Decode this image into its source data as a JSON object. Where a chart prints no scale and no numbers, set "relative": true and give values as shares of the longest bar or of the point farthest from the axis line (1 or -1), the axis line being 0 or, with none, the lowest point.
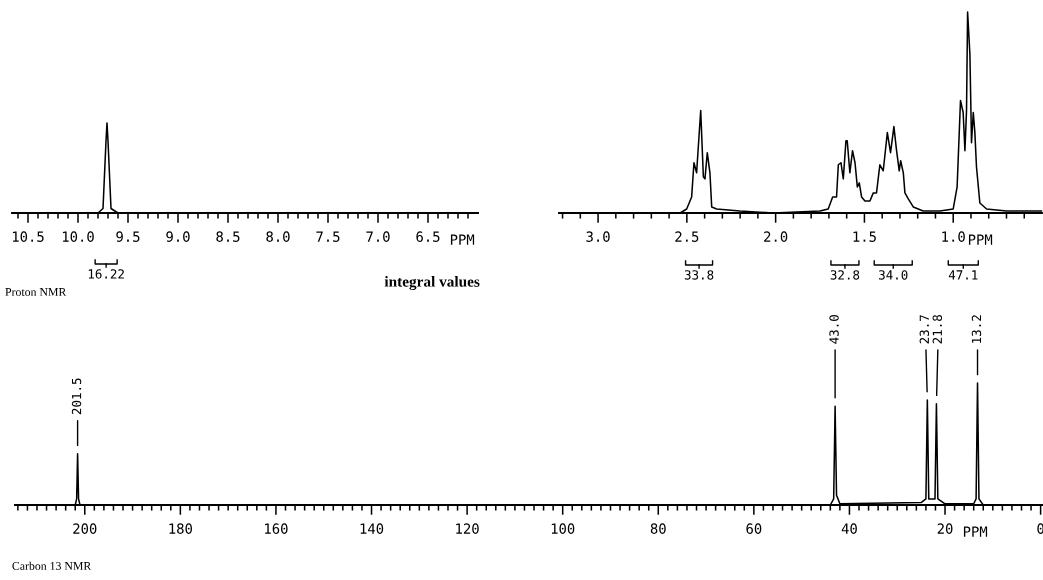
{
  "chart_data": [
    {
      "type": "line",
      "relative": true,
      "xlabel": "PPM",
      "xlim": [
        10.66,
        6.0
      ],
      "xticks": [
        {
          "value": 10.6,
          "label": null
        },
        10.5,
        {
          "value": 10.4,
          "label": null
        },
        {
          "value": 10.3,
          "label": null
        },
        {
          "value": 10.2,
          "label": null
        },
        {
          "value": 10.1,
          "label": null
        },
        {
          "value": 10.0,
          "label": "10.0"
        },
        {
          "value": 9.9,
          "label": null
        },
        {
          "value": 9.8,
          "label": null
        },
        {
          "value": 9.7,
          "label": null
        },
        {
          "value": 9.6,
          "label": null
        },
        9.5,
        {
          "value": 9.4,
          "label": null
        },
        {
          "value": 9.3,
          "label": null
        },
        {
          "value": 9.2,
          "label": null
        },
        {
          "value": 9.1,
          "label": null
        },
        {
          "value": 9.0,
          "label": "9.0"
        },
        {
          "value": 8.9,
          "label": null
        },
        {
          "value": 8.8,
          "label": null
        },
        {
          "value": 8.7,
          "label": null
        },
        {
          "value": 8.6,
          "label": null
        },
        8.5,
        {
          "value": 8.4,
          "label": null
        },
        {
          "value": 8.3,
          "label": null
        },
        {
          "value": 8.2,
          "label": null
        },
        {
          "value": 8.1,
          "label": null
        },
        {
          "value": 8.0,
          "label": "8.0"
        },
        {
          "value": 7.9,
          "label": null
        },
        {
          "value": 7.8,
          "label": null
        },
        {
          "value": 7.7,
          "label": null
        },
        {
          "value": 7.6,
          "label": null
        },
        7.5,
        {
          "value": 7.4,
          "label": null
        },
        {
          "value": 7.3,
          "label": null
        },
        {
          "value": 7.2,
          "label": null
        },
        {
          "value": 7.1,
          "label": null
        },
        {
          "value": 7.0,
          "label": "7.0"
        },
        {
          "value": 6.9,
          "label": null
        },
        {
          "value": 6.8,
          "label": null
        },
        {
          "value": 6.7,
          "label": null
        },
        {
          "value": 6.6,
          "label": null
        },
        6.5,
        {
          "value": 6.4,
          "label": null
        },
        {
          "value": 6.3,
          "label": null
        },
        {
          "value": 6.2,
          "label": null
        },
        {
          "value": 6.1,
          "label": null
        }
      ],
      "series": [
        {
          "color": "#000000",
          "x": [
            10.66,
            9.8,
            9.75,
            9.72,
            9.71,
            9.7,
            9.67,
            9.6,
            6.0
          ],
          "values": [
            0,
            0,
            0.05,
            0.8,
            1,
            0.8,
            0.05,
            0,
            0
          ]
        }
      ],
      "annotations": [
        "Proton NMR",
        "integral values",
        "16.22"
      ]
    },
    {
      "type": "line",
      "relative": true,
      "xlabel": "PPM",
      "xlim": [
        3.22,
        0.5
      ],
      "xticks": [
        {
          "value": 3.2,
          "label": null
        },
        {
          "value": 3.1,
          "label": null
        },
        {
          "value": 3.0,
          "label": "3.0"
        },
        {
          "value": 2.9,
          "label": null
        },
        {
          "value": 2.8,
          "label": null
        },
        {
          "value": 2.7,
          "label": null
        },
        {
          "value": 2.6,
          "label": null
        },
        2.5,
        {
          "value": 2.4,
          "label": null
        },
        {
          "value": 2.3,
          "label": null
        },
        {
          "value": 2.2,
          "label": null
        },
        {
          "value": 2.1,
          "label": null
        },
        {
          "value": 2.0,
          "label": "2.0"
        },
        {
          "value": 1.9,
          "label": null
        },
        {
          "value": 1.8,
          "label": null
        },
        {
          "value": 1.7,
          "label": null
        },
        {
          "value": 1.6,
          "label": null
        },
        1.5,
        {
          "value": 1.4,
          "label": null
        },
        {
          "value": 1.3,
          "label": null
        },
        {
          "value": 1.2,
          "label": null
        },
        {
          "value": 1.1,
          "label": null
        },
        {
          "value": 1.0,
          "label": "1.0"
        },
        {
          "value": 0.9,
          "label": null
        },
        {
          "value": 0.8,
          "label": null
        },
        {
          "value": 0.7,
          "label": null
        },
        {
          "value": 0.6,
          "label": null
        }
      ],
      "series": [
        {
          "color": "#000000",
          "x": [
            3.218,
            2.538,
            2.501,
            2.473,
            2.46,
            2.445,
            2.422,
            2.407,
            2.398,
            2.385,
            2.37,
            2.36,
            2.332,
            2.201,
            2.013,
            1.75,
            1.704,
            1.679,
            1.657,
            1.647,
            1.632,
            1.619,
            1.604,
            1.597,
            1.582,
            1.567,
            1.553,
            1.54,
            1.529,
            1.516,
            1.497,
            1.469,
            1.45,
            1.432,
            1.413,
            1.394,
            1.371,
            1.353,
            1.334,
            1.319,
            1.304,
            1.296,
            1.281,
            1.272,
            1.253,
            1.225,
            1.169,
            1.075,
            1.0,
            0.978,
            0.959,
            0.944,
            0.934,
            0.925,
            0.919,
            0.906,
            0.897,
            0.887,
            0.878,
            0.869,
            0.85,
            0.812,
            0.7,
            0.503
          ],
          "values": [
            0,
            0,
            0.02,
            0.08,
            0.25,
            0.2,
            0.51,
            0.18,
            0.17,
            0.3,
            0.2,
            0.03,
            0.02,
            0.01,
            0,
            0.01,
            0.02,
            0.08,
            0.08,
            0.24,
            0.25,
            0.17,
            0.36,
            0.36,
            0.2,
            0.31,
            0.25,
            0.13,
            0.15,
            0.08,
            0.06,
            0.06,
            0.1,
            0.1,
            0.24,
            0.21,
            0.4,
            0.3,
            0.43,
            0.31,
            0.21,
            0.26,
            0.2,
            0.1,
            0.07,
            0.03,
            0.01,
            0.01,
            0.02,
            0.13,
            0.56,
            0.5,
            0.31,
            0.51,
            1,
            0.79,
            0.35,
            0.5,
            0.4,
            0.23,
            0.05,
            0.02,
            0.01,
            0.01
          ]
        }
      ],
      "annotations": [
        "33.8",
        "32.8",
        "34.0",
        "47.1"
      ]
    },
    {
      "type": "line",
      "relative": true,
      "xlabel": "PPM",
      "xlim": [
        214.6,
        -0.5
      ],
      "xticks": [
        {
          "value": 214,
          "label": null
        },
        {
          "value": 212,
          "label": null
        },
        {
          "value": 210,
          "label": null
        },
        {
          "value": 208,
          "label": null
        },
        {
          "value": 206,
          "label": null
        },
        {
          "value": 204,
          "label": null
        },
        {
          "value": 202,
          "label": null
        },
        200,
        {
          "value": 198,
          "label": null
        },
        {
          "value": 196,
          "label": null
        },
        {
          "value": 194,
          "label": null
        },
        {
          "value": 192,
          "label": null
        },
        {
          "value": 190,
          "label": null
        },
        {
          "value": 188,
          "label": null
        },
        {
          "value": 186,
          "label": null
        },
        {
          "value": 184,
          "label": null
        },
        {
          "value": 182,
          "label": null
        },
        180,
        {
          "value": 178,
          "label": null
        },
        {
          "value": 176,
          "label": null
        },
        {
          "value": 174,
          "label": null
        },
        {
          "value": 172,
          "label": null
        },
        {
          "value": 170,
          "label": null
        },
        {
          "value": 168,
          "label": null
        },
        {
          "value": 166,
          "label": null
        },
        {
          "value": 164,
          "label": null
        },
        {
          "value": 162,
          "label": null
        },
        160,
        {
          "value": 158,
          "label": null
        },
        {
          "value": 156,
          "label": null
        },
        {
          "value": 154,
          "label": null
        },
        {
          "value": 152,
          "label": null
        },
        {
          "value": 150,
          "label": null
        },
        {
          "value": 148,
          "label": null
        },
        {
          "value": 146,
          "label": null
        },
        {
          "value": 144,
          "label": null
        },
        {
          "value": 142,
          "label": null
        },
        140,
        {
          "value": 138,
          "label": null
        },
        {
          "value": 136,
          "label": null
        },
        {
          "value": 134,
          "label": null
        },
        {
          "value": 132,
          "label": null
        },
        {
          "value": 130,
          "label": null
        },
        {
          "value": 128,
          "label": null
        },
        {
          "value": 126,
          "label": null
        },
        {
          "value": 124,
          "label": null
        },
        {
          "value": 122,
          "label": null
        },
        120,
        {
          "value": 118,
          "label": null
        },
        {
          "value": 116,
          "label": null
        },
        {
          "value": 114,
          "label": null
        },
        {
          "value": 112,
          "label": null
        },
        {
          "value": 110,
          "label": null
        },
        {
          "value": 108,
          "label": null
        },
        {
          "value": 106,
          "label": null
        },
        {
          "value": 104,
          "label": null
        },
        {
          "value": 102,
          "label": null
        },
        100,
        {
          "value": 98,
          "label": null
        },
        {
          "value": 96,
          "label": null
        },
        {
          "value": 94,
          "label": null
        },
        {
          "value": 92,
          "label": null
        },
        {
          "value": 90,
          "label": null
        },
        {
          "value": 88,
          "label": null
        },
        {
          "value": 86,
          "label": null
        },
        {
          "value": 84,
          "label": null
        },
        {
          "value": 82,
          "label": null
        },
        80,
        {
          "value": 78,
          "label": null
        },
        {
          "value": 76,
          "label": null
        },
        {
          "value": 74,
          "label": null
        },
        {
          "value": 72,
          "label": null
        },
        {
          "value": 70,
          "label": null
        },
        {
          "value": 68,
          "label": null
        },
        {
          "value": 66,
          "label": null
        },
        {
          "value": 64,
          "label": null
        },
        {
          "value": 62,
          "label": null
        },
        60,
        {
          "value": 58,
          "label": null
        },
        {
          "value": 56,
          "label": null
        },
        {
          "value": 54,
          "label": null
        },
        {
          "value": 52,
          "label": null
        },
        {
          "value": 50,
          "label": null
        },
        {
          "value": 48,
          "label": null
        },
        {
          "value": 46,
          "label": null
        },
        {
          "value": 44,
          "label": null
        },
        {
          "value": 42,
          "label": null
        },
        40,
        {
          "value": 38,
          "label": null
        },
        {
          "value": 36,
          "label": null
        },
        {
          "value": 34,
          "label": null
        },
        {
          "value": 32,
          "label": null
        },
        {
          "value": 30,
          "label": null
        },
        {
          "value": 28,
          "label": null
        },
        {
          "value": 26,
          "label": null
        },
        {
          "value": 24,
          "label": null
        },
        {
          "value": 22,
          "label": null
        },
        20,
        {
          "value": 18,
          "label": null
        },
        {
          "value": 16,
          "label": null
        },
        {
          "value": 14,
          "label": null
        },
        {
          "value": 12,
          "label": null
        },
        {
          "value": 10,
          "label": null
        },
        {
          "value": 8,
          "label": null
        },
        {
          "value": 6,
          "label": null
        },
        {
          "value": 4,
          "label": null
        },
        {
          "value": 2,
          "label": null
        },
        0
      ],
      "series": [
        {
          "color": "#000000",
          "x": [
            214.6,
            202,
            201.7,
            201.5,
            201.3,
            201,
            44,
            43.3,
            43.0,
            42.7,
            42,
            25,
            24,
            23.7,
            23.4,
            22.1,
            21.8,
            21.5,
            20,
            14,
            13.5,
            13.2,
            12.9,
            12,
            -0.5
          ],
          "values": [
            0,
            0,
            0.05,
            0.42,
            0.05,
            0,
            0,
            0.05,
            0.81,
            0.08,
            0.01,
            0.02,
            0.05,
            0.86,
            0.05,
            0.05,
            0.83,
            0.05,
            0.01,
            0.01,
            0.05,
            1,
            0.05,
            0,
            0
          ]
        }
      ],
      "annotations": [
        "Carbon 13 NMR",
        {
          "text": "201.5",
          "x": 201.5,
          "y": 0.42
        },
        {
          "text": "43.0",
          "x": 43.0,
          "y": 0.81
        },
        {
          "text": "23.7",
          "x": 23.7,
          "y": 0.86
        },
        {
          "text": "21.8",
          "x": 21.8,
          "y": 0.83
        },
        {
          "text": "13.2",
          "x": 13.2,
          "y": 1
        }
      ]
    }
  ]
}
